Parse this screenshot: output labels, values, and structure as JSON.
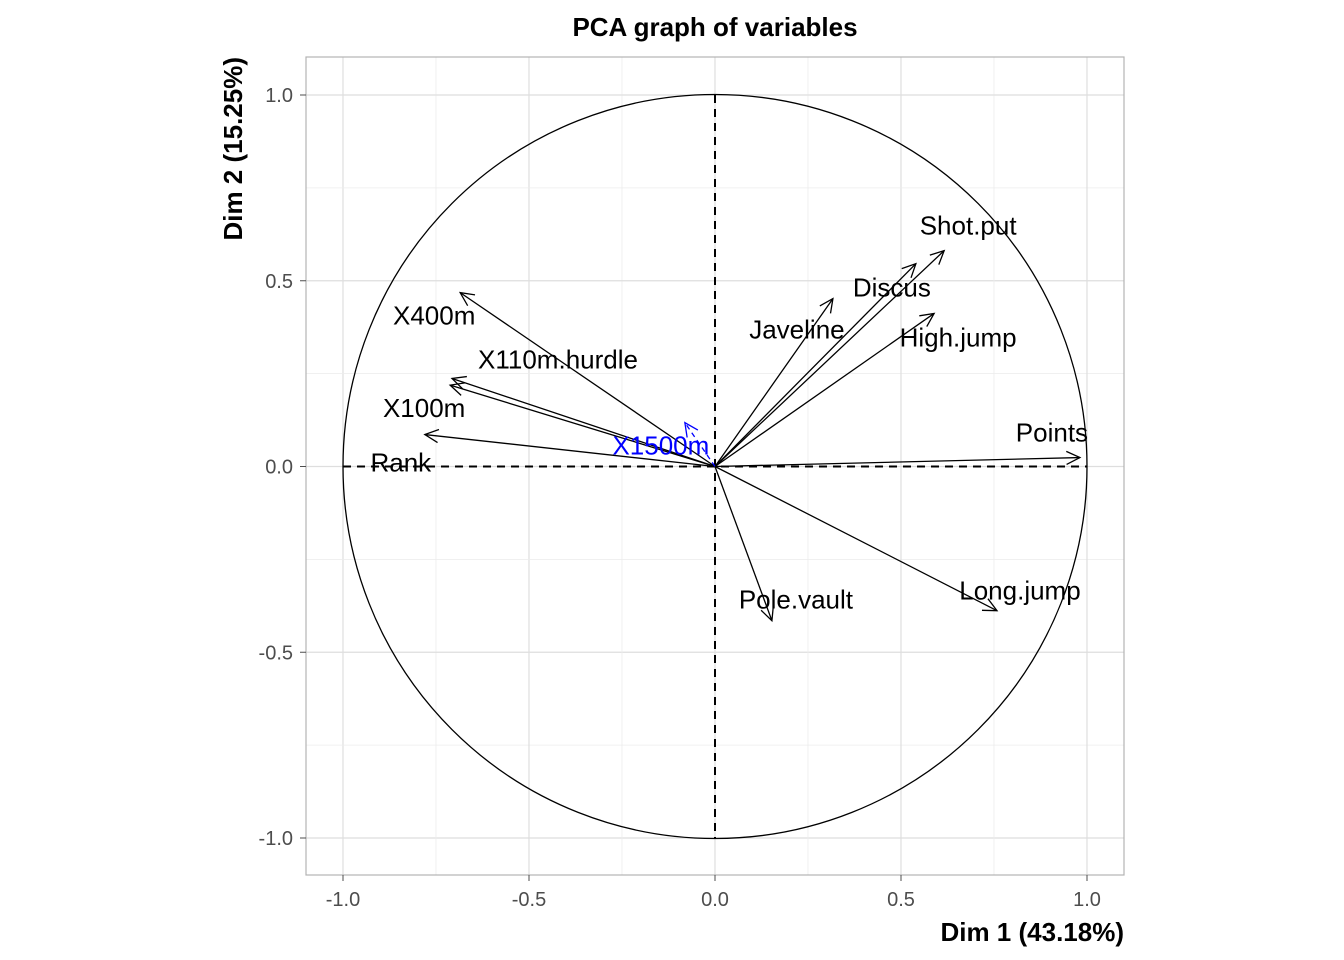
{
  "chart_data": {
    "type": "pca-variables",
    "title": "PCA graph of variables",
    "xlabel": "Dim 1 (43.18%)",
    "ylabel": "Dim 2 (15.25%)",
    "xlim": [
      -1.1,
      1.1
    ],
    "ylim": [
      -1.1,
      1.1
    ],
    "xticks": [
      -1.0,
      -0.5,
      0.0,
      0.5,
      1.0
    ],
    "yticks": [
      -1.0,
      -0.5,
      0.0,
      0.5,
      1.0
    ],
    "xtick_labels": [
      "-1.0",
      "-0.5",
      "0.0",
      "0.5",
      "1.0"
    ],
    "ytick_labels": [
      "-1.0",
      "-0.5",
      "0.0",
      "0.5",
      "1.0"
    ],
    "grid": true,
    "variables": [
      {
        "name": "Points",
        "x": 0.981,
        "y": 0.024,
        "color": "#000000"
      },
      {
        "name": "Shot.put",
        "x": 0.616,
        "y": 0.581,
        "color": "#000000"
      },
      {
        "name": "Discus",
        "x": 0.54,
        "y": 0.546,
        "color": "#000000"
      },
      {
        "name": "Javeline",
        "x": 0.317,
        "y": 0.452,
        "color": "#000000"
      },
      {
        "name": "High.jump",
        "x": 0.589,
        "y": 0.412,
        "color": "#000000"
      },
      {
        "name": "X400m",
        "x": -0.685,
        "y": 0.468,
        "color": "#000000"
      },
      {
        "name": "X110m.hurdle",
        "x": -0.707,
        "y": 0.237,
        "color": "#000000"
      },
      {
        "name": "X100m",
        "x": -0.712,
        "y": 0.219,
        "color": "#000000"
      },
      {
        "name": "Rank",
        "x": -0.78,
        "y": 0.086,
        "color": "#000000"
      },
      {
        "name": "X1500m",
        "x": -0.081,
        "y": 0.118,
        "color": "#0000ff",
        "dashed": true
      },
      {
        "name": "Pole.vault",
        "x": 0.153,
        "y": -0.415,
        "color": "#000000"
      },
      {
        "name": "Long.jump",
        "x": 0.758,
        "y": -0.388,
        "color": "#000000"
      }
    ]
  }
}
